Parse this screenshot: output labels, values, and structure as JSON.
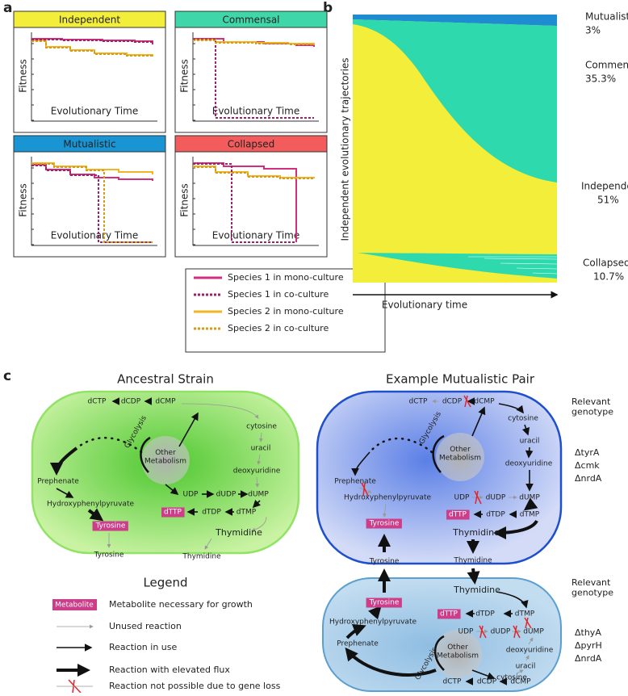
{
  "panel_labels": [
    "a",
    "b",
    "c"
  ],
  "a": {
    "plots": [
      {
        "title": "Independent",
        "y_label": "Fitness",
        "x_label": "Evolutionary Time"
      },
      {
        "title": "Commensal",
        "y_label": "Fitness",
        "x_label": "Evolutionary Time"
      },
      {
        "title": "Mutualistic",
        "y_label": "Fitness",
        "x_label": "Evolutionary Time"
      },
      {
        "title": "Collapsed",
        "y_label": "Fitness",
        "x_label": "Evolutionary Time"
      }
    ],
    "legend": [
      "Species 1 in mono-culture",
      "Species 1 in co-culture",
      "Species 2 in mono-culture",
      "Species 2 in co-culture"
    ]
  },
  "b": {
    "y_label": "Independent evolutionary trajectories",
    "x_label": "Evolutionary time",
    "groups": [
      {
        "name": "Mutualistic",
        "share": "3%"
      },
      {
        "name": "Commensal",
        "share": "35.3%"
      },
      {
        "name": "Independent",
        "share": "51%"
      },
      {
        "name": "Collapsed",
        "share": "10.7%"
      }
    ]
  },
  "c": {
    "ancestral": {
      "title": "Ancestral Strain",
      "nodes": [
        {
          "label": "dCTP"
        },
        {
          "label": "dCDP"
        },
        {
          "label": "dCMP"
        },
        {
          "label": "cytosine"
        },
        {
          "label": "uracil"
        },
        {
          "label": "deoxyuridine"
        },
        {
          "label": "Other Metabolism"
        },
        {
          "label": "Glycolysis"
        },
        {
          "label": "Prephenate"
        },
        {
          "label": "Hydroxyphenylpyruvate"
        },
        {
          "label": "Tyrosine",
          "essential": true
        },
        {
          "label": "UDP"
        },
        {
          "label": "dUDP"
        },
        {
          "label": "dUMP"
        },
        {
          "label": "dTTP",
          "essential": true
        },
        {
          "label": "dTDP"
        },
        {
          "label": "dTMP"
        },
        {
          "label": "Thymidine"
        }
      ],
      "outside": [
        "Tyrosine",
        "Thymidine"
      ]
    },
    "pair": {
      "title": "Example Mutualistic Pair",
      "top": {
        "genotype_title": "Relevant genotype",
        "genotype": [
          "ΔtyrA",
          "Δcmk",
          "ΔnrdA"
        ],
        "nodes": [
          {
            "label": "dCTP"
          },
          {
            "label": "dCDP"
          },
          {
            "label": "dCMP"
          },
          {
            "label": "cytosine"
          },
          {
            "label": "uracil"
          },
          {
            "label": "deoxyuridine"
          },
          {
            "label": "Other Metabolism"
          },
          {
            "label": "Glycolysis"
          },
          {
            "label": "Prephenate"
          },
          {
            "label": "Hydroxyphenylpyruvate"
          },
          {
            "label": "Tyrosine",
            "essential": true
          },
          {
            "label": "UDP"
          },
          {
            "label": "dUDP"
          },
          {
            "label": "dUMP"
          },
          {
            "label": "dTTP",
            "essential": true
          },
          {
            "label": "dTDP"
          },
          {
            "label": "dTMP"
          },
          {
            "label": "Thymidine"
          }
        ]
      },
      "exchange": [
        "Tyrosine",
        "Thymidine"
      ],
      "bottom": {
        "genotype_title": "Relevant genotype",
        "genotype": [
          "ΔthyA",
          "ΔpyrH",
          "ΔnrdA"
        ],
        "nodes": [
          {
            "label": "Thymidine"
          },
          {
            "label": "Tyrosine",
            "essential": true
          },
          {
            "label": "Hydroxyphenylpyruvate"
          },
          {
            "label": "Prephenate"
          },
          {
            "label": "dTTP",
            "essential": true
          },
          {
            "label": "dTDP"
          },
          {
            "label": "dTMP"
          },
          {
            "label": "UDP"
          },
          {
            "label": "dUDP"
          },
          {
            "label": "dUMP"
          },
          {
            "label": "deoxyuridine"
          },
          {
            "label": "uracil"
          },
          {
            "label": "cytosine"
          },
          {
            "label": "Other Metabolism"
          },
          {
            "label": "Glycolysis"
          },
          {
            "label": "dCTP"
          },
          {
            "label": "dCDP"
          },
          {
            "label": "dCMP"
          }
        ]
      }
    },
    "legend": {
      "title": "Legend",
      "items": [
        {
          "key": "Metabolite",
          "text": "Metabolite necessary for growth"
        },
        {
          "text": "Unused reaction"
        },
        {
          "text": "Reaction in use"
        },
        {
          "text": "Reaction with elevated flux"
        },
        {
          "text": "Reaction not possible due to gene loss"
        }
      ]
    }
  }
}
